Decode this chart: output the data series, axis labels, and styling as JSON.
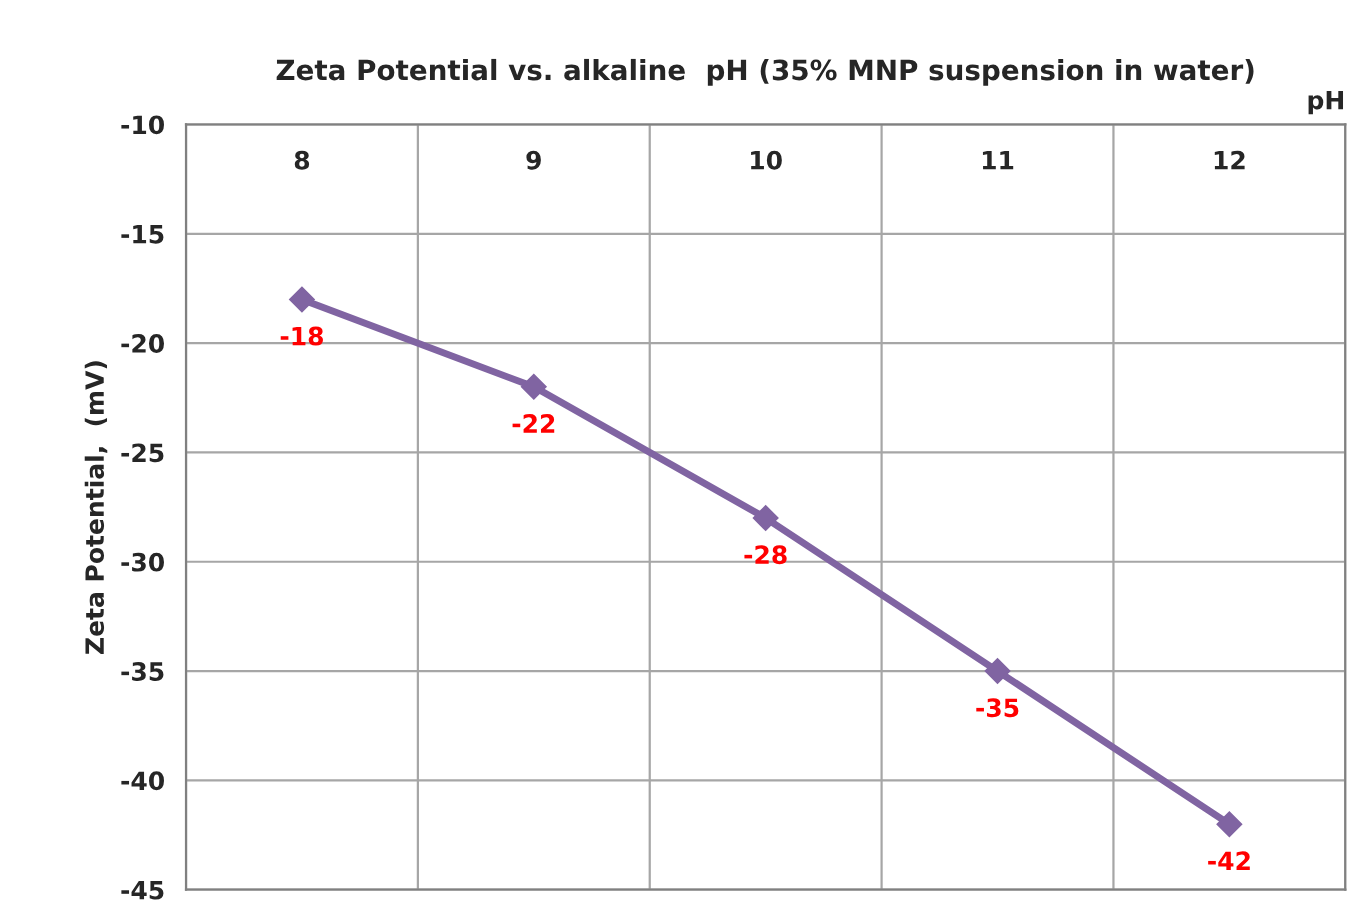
{
  "chart_data": {
    "type": "line",
    "title": "Zeta Potential vs. alkaline  pH (35% MNP suspension in water)",
    "xlabel": "pH",
    "ylabel": "Zeta Potential,  (mV)",
    "categories": [
      "8",
      "9",
      "10",
      "11",
      "12"
    ],
    "series": [
      {
        "color": "#8064a2",
        "values": [
          -18,
          -22,
          -28,
          -35,
          -42
        ]
      }
    ],
    "ylim": [
      -45,
      -10
    ],
    "yticks": [
      -45,
      -40,
      -35,
      -30,
      -25,
      -20,
      -15,
      -10
    ],
    "grid": true,
    "marker": "diamond",
    "line_style": "solid",
    "data_labels": true,
    "legend": false
  }
}
